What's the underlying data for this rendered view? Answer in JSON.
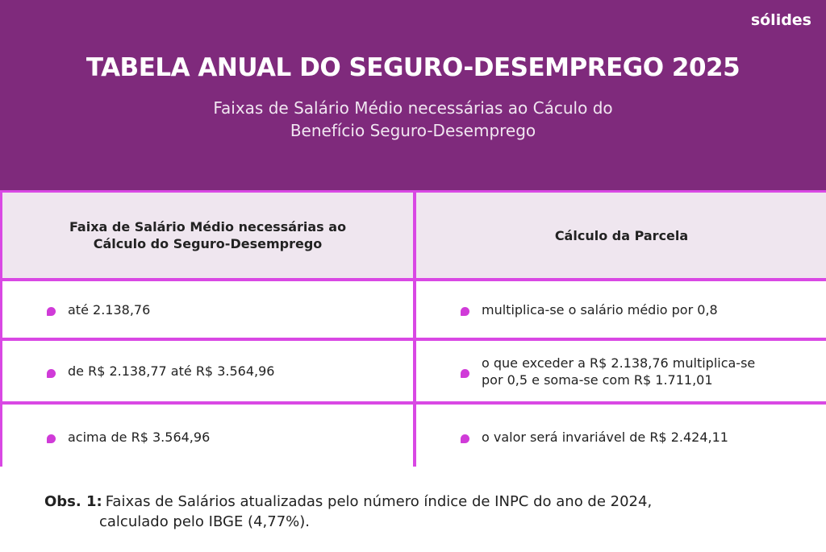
{
  "header": {
    "logo": "sólides",
    "title": "TABELA ANUAL DO SEGURO-DESEMPREGO 2025",
    "subtitle": [
      "Faixas de Salário Médio necessárias ao Cáculo do",
      "Benefício Seguro-Desemprego"
    ]
  },
  "table": {
    "headers": [
      [
        "Faixa de Salário Médio necessárias ao",
        "Cálculo do Seguro-Desemprego"
      ],
      [
        "Cálculo da Parcela"
      ]
    ],
    "rows": [
      [
        [
          "até 2.138,76"
        ],
        [
          "multiplica-se o salário médio por 0,8"
        ]
      ],
      [
        [
          "de R$ 2.138,77 até R$ 3.564,96"
        ],
        [
          "o que exceder a R$ 2.138,76 multiplica-se",
          "por 0,5 e soma-se com R$ 1.711,01"
        ]
      ],
      [
        [
          "acima de R$ 3.564,96"
        ],
        [
          "o valor será invariável de R$ 2.424,11"
        ]
      ]
    ]
  },
  "note": {
    "label": "Obs. 1:",
    "text": [
      "Faixas de Salários atualizadas pelo número índice de INPC do ano de 2024,",
      "calculado pelo IBGE (4,77%)."
    ]
  }
}
